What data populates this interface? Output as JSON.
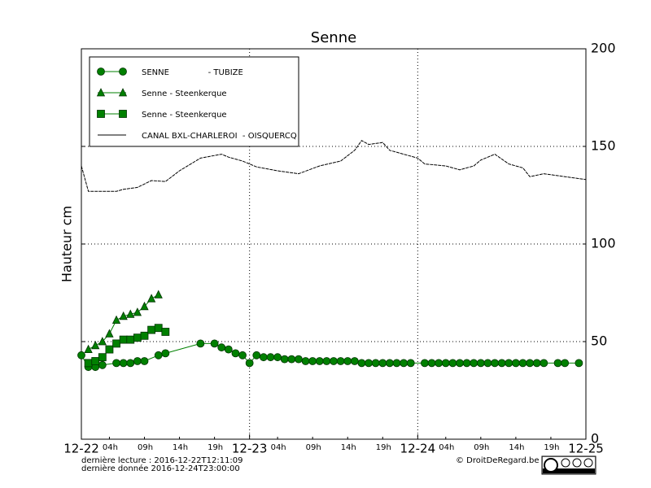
{
  "chart_data": {
    "type": "line",
    "title": "Senne",
    "ylabel": "Hauteur cm",
    "xlim": [
      0,
      72
    ],
    "ylim": [
      0,
      200
    ],
    "xticks": [
      {
        "value": 0,
        "label": "12-22"
      },
      {
        "value": 4,
        "label": "04h"
      },
      {
        "value": 9,
        "label": "09h"
      },
      {
        "value": 14,
        "label": "14h"
      },
      {
        "value": 19,
        "label": "19h"
      },
      {
        "value": 24,
        "label": "12-23"
      },
      {
        "value": 28,
        "label": "04h"
      },
      {
        "value": 33,
        "label": "09h"
      },
      {
        "value": 38,
        "label": "14h"
      },
      {
        "value": 43,
        "label": "19h"
      },
      {
        "value": 48,
        "label": "12-24"
      },
      {
        "value": 52,
        "label": "04h"
      },
      {
        "value": 57,
        "label": "09h"
      },
      {
        "value": 62,
        "label": "14h"
      },
      {
        "value": 67,
        "label": "19h"
      },
      {
        "value": 72,
        "label": "12-25"
      }
    ],
    "yticks": [
      0,
      50,
      100,
      150,
      200
    ],
    "grid": true,
    "series": [
      {
        "name": "SENNE               - TUBIZE",
        "color": "#008000",
        "marker": "circle",
        "x": [
          0,
          1,
          2,
          3,
          5,
          6,
          7,
          8,
          9,
          11,
          12,
          17,
          19,
          20,
          21,
          22,
          23,
          24,
          25,
          26,
          27,
          28,
          29,
          30,
          31,
          32,
          33,
          34,
          35,
          36,
          37,
          38,
          39,
          40,
          41,
          42,
          43,
          44,
          45,
          46,
          47,
          49,
          50,
          51,
          52,
          53,
          54,
          55,
          56,
          57,
          58,
          59,
          60,
          61,
          62,
          63,
          64,
          65,
          66,
          68,
          69,
          71
        ],
        "values": [
          43,
          37,
          37,
          38,
          39,
          39,
          39,
          40,
          40,
          43,
          44,
          49,
          49,
          47,
          46,
          44,
          43,
          39,
          43,
          42,
          42,
          42,
          41,
          41,
          41,
          40,
          40,
          40,
          40,
          40,
          40,
          40,
          40,
          39,
          39,
          39,
          39,
          39,
          39,
          39,
          39,
          39,
          39,
          39,
          39,
          39,
          39,
          39,
          39,
          39,
          39,
          39,
          39,
          39,
          39,
          39,
          39,
          39,
          39,
          39,
          39,
          39
        ]
      },
      {
        "name": "Senne - Steenkerque",
        "color": "#008000",
        "marker": "triangle",
        "x": [
          1,
          2,
          3,
          4,
          5,
          6,
          7,
          8,
          9,
          10,
          11
        ],
        "values": [
          46,
          48,
          50,
          54,
          61,
          63,
          64,
          65,
          68,
          72,
          74
        ]
      },
      {
        "name": "Senne - Steenkerque",
        "color": "#008000",
        "marker": "square",
        "x": [
          1,
          2,
          3,
          4,
          5,
          6,
          7,
          8,
          9,
          10,
          11,
          12
        ],
        "values": [
          39,
          40,
          42,
          46,
          49,
          51,
          51,
          52,
          53,
          56,
          57,
          55
        ]
      },
      {
        "name": "CANAL BXL-CHARLEROI  - OISQUERCQ",
        "color": "#000000",
        "marker": "none",
        "x": [
          0,
          1,
          5,
          6,
          8,
          10,
          12,
          14,
          17,
          20,
          21,
          23,
          25,
          28,
          31,
          34,
          37,
          39,
          40,
          41,
          43,
          44,
          46,
          48,
          49,
          52,
          54,
          56,
          57,
          59,
          61,
          63,
          64,
          66,
          69,
          72
        ],
        "values": [
          140,
          127,
          127,
          128,
          129,
          132.5,
          132,
          137.5,
          144,
          146,
          144.5,
          142.5,
          139.5,
          137.5,
          136,
          140,
          142.5,
          148,
          153,
          151,
          152,
          148,
          146,
          144,
          141,
          140,
          138,
          140,
          143,
          146,
          141,
          139,
          134.5,
          136,
          134.5,
          133
        ]
      }
    ]
  },
  "footer": {
    "last_read": "dernière lecture : 2016-12-22T12:11:09",
    "last_data": "dernière donnée  2016-12-24T23:00:00",
    "credit": "© DroitDeRegard.be"
  }
}
